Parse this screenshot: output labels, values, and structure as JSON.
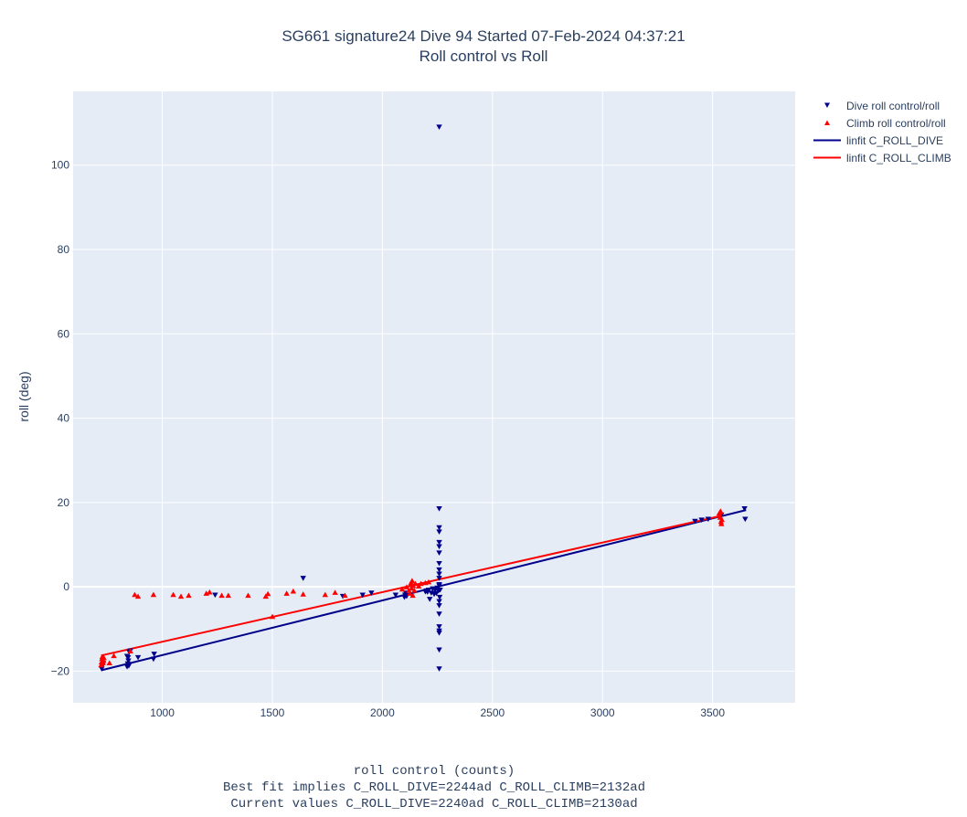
{
  "chart_data": {
    "type": "scatter",
    "title": "SG661 signature24 Dive 94 Started 07-Feb-2024 04:37:21",
    "subtitle": "Roll control vs Roll",
    "xlabel": "roll control (counts)",
    "ylabel": "roll (deg)",
    "xlim": [
      595,
      3875
    ],
    "ylim": [
      -27.5,
      117.5
    ],
    "x_ticks": [
      1000,
      1500,
      2000,
      2500,
      3000,
      3500
    ],
    "y_ticks": [
      -20,
      0,
      20,
      40,
      60,
      80,
      100
    ],
    "grid": true,
    "legend_position": "top-right",
    "annotations": [
      "Best fit implies C_ROLL_DIVE=2244ad C_ROLL_CLIMB=2132ad",
      "Current values C_ROLL_DIVE=2240ad C_ROLL_CLIMB=2130ad"
    ],
    "series": [
      {
        "name": "Dive roll control/roll",
        "kind": "markers",
        "marker": "triangle-down",
        "color": "#00008b",
        "points": [
          [
            725,
            -19.5
          ],
          [
            728,
            -18.8
          ],
          [
            732,
            -18.2
          ],
          [
            840,
            -19.0
          ],
          [
            843,
            -18.3
          ],
          [
            846,
            -17.6
          ],
          [
            848,
            -18.8
          ],
          [
            840,
            -16.5
          ],
          [
            845,
            -16.8
          ],
          [
            850,
            -15.5
          ],
          [
            855,
            -15.2
          ],
          [
            890,
            -16.8
          ],
          [
            960,
            -17.2
          ],
          [
            963,
            -16.0
          ],
          [
            1240,
            -2.0
          ],
          [
            1640,
            2.0
          ],
          [
            1820,
            -2.3
          ],
          [
            1910,
            -2.0
          ],
          [
            1950,
            -1.5
          ],
          [
            2060,
            -2.0
          ],
          [
            2100,
            -2.5
          ],
          [
            2103,
            -2.0
          ],
          [
            2106,
            -1.5
          ],
          [
            2110,
            -2.3
          ],
          [
            2200,
            -1.0
          ],
          [
            2205,
            -1.3
          ],
          [
            2210,
            -0.8
          ],
          [
            2215,
            -3.0
          ],
          [
            2222,
            -1.5
          ],
          [
            2228,
            -0.5
          ],
          [
            2235,
            -1.8
          ],
          [
            2240,
            -0.8
          ],
          [
            2245,
            -1.6
          ],
          [
            2250,
            -0.3
          ],
          [
            2255,
            -1.0
          ],
          [
            2258,
            0.2
          ],
          [
            2262,
            -0.8
          ],
          [
            2258,
            109.0
          ],
          [
            2258,
            18.5
          ],
          [
            2258,
            14.0
          ],
          [
            2258,
            13.0
          ],
          [
            2258,
            10.5
          ],
          [
            2258,
            9.5
          ],
          [
            2258,
            8.0
          ],
          [
            2258,
            5.5
          ],
          [
            2258,
            4.0
          ],
          [
            2258,
            3.0
          ],
          [
            2258,
            2.0
          ],
          [
            2258,
            0.5
          ],
          [
            2258,
            -3.5
          ],
          [
            2258,
            -4.5
          ],
          [
            2258,
            -6.5
          ],
          [
            2258,
            -9.5
          ],
          [
            2258,
            -10.5
          ],
          [
            2258,
            -11.0
          ],
          [
            2258,
            -15.0
          ],
          [
            2258,
            -19.5
          ],
          [
            2260,
            -2.5
          ],
          [
            2195,
            -1.2
          ],
          [
            3420,
            15.5
          ],
          [
            3450,
            15.8
          ],
          [
            3480,
            16.0
          ],
          [
            3540,
            17.0
          ],
          [
            3645,
            18.5
          ],
          [
            3648,
            16.0
          ]
        ]
      },
      {
        "name": "Climb roll control/roll",
        "kind": "markers",
        "marker": "triangle-up",
        "color": "#ff0000",
        "points": [
          [
            722,
            -18.5
          ],
          [
            724,
            -17.8
          ],
          [
            726,
            -17.0
          ],
          [
            728,
            -16.5
          ],
          [
            730,
            -18.0
          ],
          [
            733,
            -17.5
          ],
          [
            735,
            -16.8
          ],
          [
            760,
            -18.0
          ],
          [
            780,
            -16.3
          ],
          [
            855,
            -15.2
          ],
          [
            875,
            -1.8
          ],
          [
            890,
            -2.2
          ],
          [
            960,
            -1.8
          ],
          [
            1050,
            -1.8
          ],
          [
            1085,
            -2.2
          ],
          [
            1120,
            -2.0
          ],
          [
            1200,
            -1.5
          ],
          [
            1215,
            -1.2
          ],
          [
            1270,
            -2.0
          ],
          [
            1300,
            -2.0
          ],
          [
            1390,
            -2.0
          ],
          [
            1470,
            -2.2
          ],
          [
            1480,
            -1.6
          ],
          [
            1500,
            -7.0
          ],
          [
            1565,
            -1.5
          ],
          [
            1595,
            -1.0
          ],
          [
            1640,
            -1.7
          ],
          [
            1740,
            -1.8
          ],
          [
            1785,
            -1.3
          ],
          [
            1830,
            -2.0
          ],
          [
            2090,
            -0.5
          ],
          [
            2110,
            0.0
          ],
          [
            2120,
            -0.8
          ],
          [
            2125,
            -1.5
          ],
          [
            2128,
            0.5
          ],
          [
            2130,
            1.0
          ],
          [
            2132,
            -0.3
          ],
          [
            2135,
            1.5
          ],
          [
            2138,
            -2.0
          ],
          [
            2140,
            0.3
          ],
          [
            2145,
            -0.8
          ],
          [
            2150,
            0.8
          ],
          [
            2165,
            0.2
          ],
          [
            2175,
            0.8
          ],
          [
            2195,
            1.0
          ],
          [
            2210,
            1.2
          ],
          [
            3530,
            17.5
          ],
          [
            3532,
            17.0
          ],
          [
            3534,
            16.5
          ],
          [
            3536,
            18.0
          ],
          [
            3538,
            15.5
          ],
          [
            3540,
            15.0
          ],
          [
            3542,
            16.0
          ],
          [
            3535,
            17.8
          ]
        ]
      },
      {
        "name": "linfit C_ROLL_DIVE",
        "kind": "line",
        "color": "#00008b",
        "points": [
          [
            722,
            -19.8
          ],
          [
            3652,
            18.2
          ]
        ]
      },
      {
        "name": "linfit C_ROLL_CLIMB",
        "kind": "line",
        "color": "#ff0000",
        "points": [
          [
            722,
            -16.3
          ],
          [
            3545,
            16.9
          ]
        ]
      }
    ]
  },
  "colors": {
    "plot_bg": "#e5ecf6",
    "grid": "#ffffff",
    "text": "#2a3f5f",
    "dive": "#00008b",
    "climb": "#ff0000"
  }
}
